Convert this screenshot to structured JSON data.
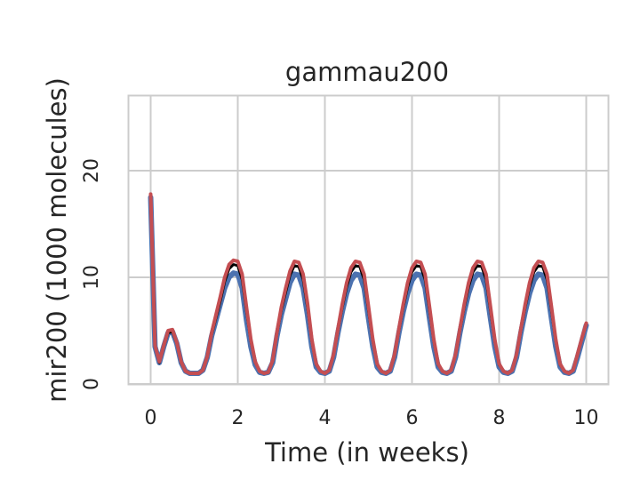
{
  "chart_data": {
    "type": "line",
    "title": "gammau200",
    "xlabel": "Time (in weeks)",
    "ylabel": "mir200 (1000 molecules)",
    "xlim": [
      -0.5,
      10.5
    ],
    "ylim": [
      0,
      27
    ],
    "xticks": [
      0,
      2,
      4,
      6,
      8,
      10
    ],
    "yticks": [
      0,
      10,
      20
    ],
    "grid": true,
    "legend": "none",
    "series": [
      {
        "color": "#4c72b0",
        "x": [
          0,
          0.1,
          0.2,
          0.3,
          0.4,
          0.5,
          0.6,
          0.7,
          0.8,
          0.9,
          1.0,
          1.1,
          1.2,
          1.3,
          1.4,
          1.5,
          1.6,
          1.7,
          1.8,
          1.9,
          2.0,
          2.1,
          2.2,
          2.3,
          2.4,
          2.5,
          2.6,
          2.7,
          2.8,
          2.9,
          3.0,
          3.1,
          3.2,
          3.3,
          3.4,
          3.5,
          3.6,
          3.7,
          3.8,
          3.9,
          4.0,
          4.1,
          4.2,
          4.3,
          4.4,
          4.5,
          4.6,
          4.7,
          4.8,
          4.9,
          5.0,
          5.1,
          5.2,
          5.3,
          5.4,
          5.5,
          5.6,
          5.7,
          5.8,
          5.9,
          6.0,
          6.1,
          6.2,
          6.3,
          6.4,
          6.5,
          6.6,
          6.7,
          6.8,
          6.9,
          7.0,
          7.1,
          7.2,
          7.3,
          7.4,
          7.5,
          7.6,
          7.7,
          7.8,
          7.9,
          8.0,
          8.1,
          8.2,
          8.3,
          8.4,
          8.5,
          8.6,
          8.7,
          8.8,
          8.9,
          9.0,
          9.1,
          9.2,
          9.3,
          9.4,
          9.5,
          9.6,
          9.7,
          9.8,
          9.9,
          10.0
        ],
        "y": [
          17.5,
          3.5,
          2.0,
          3.5,
          4.8,
          4.9,
          3.8,
          2.0,
          1.2,
          1.0,
          1.0,
          1.0,
          1.3,
          2.5,
          4.5,
          6.0,
          7.5,
          9.0,
          10.0,
          10.4,
          10.3,
          9.0,
          6.0,
          3.5,
          1.8,
          1.1,
          1.0,
          1.1,
          2.0,
          4.5,
          6.5,
          8.0,
          9.5,
          10.3,
          10.2,
          9.0,
          6.5,
          3.5,
          1.6,
          1.1,
          1.0,
          1.2,
          2.5,
          4.8,
          6.8,
          8.5,
          9.7,
          10.3,
          10.2,
          9.0,
          6.2,
          3.5,
          1.6,
          1.1,
          1.0,
          1.2,
          2.5,
          4.8,
          6.8,
          8.5,
          9.7,
          10.3,
          10.2,
          9.0,
          6.2,
          3.5,
          1.6,
          1.1,
          1.0,
          1.2,
          2.5,
          4.8,
          6.8,
          8.5,
          9.7,
          10.3,
          10.2,
          9.0,
          6.2,
          3.5,
          1.6,
          1.1,
          1.0,
          1.2,
          2.5,
          4.8,
          6.8,
          8.5,
          9.7,
          10.3,
          10.2,
          9.0,
          6.2,
          3.5,
          1.6,
          1.1,
          1.0,
          1.2,
          2.5,
          4.0,
          5.5
        ]
      },
      {
        "color": "#000000",
        "x": [
          0,
          0.1,
          0.2,
          0.3,
          0.4,
          0.5,
          0.6,
          0.7,
          0.8,
          0.9,
          1.0,
          1.1,
          1.2,
          1.3,
          1.4,
          1.5,
          1.6,
          1.7,
          1.8,
          1.9,
          2.0,
          2.1,
          2.2,
          2.3,
          2.4,
          2.5,
          2.6,
          2.7,
          2.8,
          2.9,
          3.0,
          3.1,
          3.2,
          3.3,
          3.4,
          3.5,
          3.6,
          3.7,
          3.8,
          3.9,
          4.0,
          4.1,
          4.2,
          4.3,
          4.4,
          4.5,
          4.6,
          4.7,
          4.8,
          4.9,
          5.0,
          5.1,
          5.2,
          5.3,
          5.4,
          5.5,
          5.6,
          5.7,
          5.8,
          5.9,
          6.0,
          6.1,
          6.2,
          6.3,
          6.4,
          6.5,
          6.6,
          6.7,
          6.8,
          6.9,
          7.0,
          7.1,
          7.2,
          7.3,
          7.4,
          7.5,
          7.6,
          7.7,
          7.8,
          7.9,
          8.0,
          8.1,
          8.2,
          8.3,
          8.4,
          8.5,
          8.6,
          8.7,
          8.8,
          8.9,
          9.0,
          9.1,
          9.2,
          9.3,
          9.4,
          9.5,
          9.6,
          9.7,
          9.8,
          9.9,
          10.0
        ],
        "y": [
          17.5,
          3.5,
          2.0,
          3.5,
          4.8,
          4.9,
          3.8,
          2.0,
          1.2,
          1.0,
          1.0,
          1.0,
          1.3,
          2.5,
          4.6,
          6.2,
          7.8,
          9.6,
          10.8,
          11.2,
          11.1,
          9.8,
          6.8,
          4.0,
          2.0,
          1.2,
          1.0,
          1.1,
          2.1,
          4.7,
          6.9,
          8.6,
          10.2,
          11.1,
          11.0,
          9.8,
          7.2,
          4.0,
          1.8,
          1.2,
          1.0,
          1.3,
          2.7,
          5.0,
          7.2,
          9.1,
          10.5,
          11.1,
          11.0,
          9.8,
          6.9,
          4.0,
          1.8,
          1.2,
          1.0,
          1.3,
          2.7,
          5.0,
          7.2,
          9.1,
          10.5,
          11.1,
          11.0,
          9.8,
          6.9,
          4.0,
          1.8,
          1.2,
          1.0,
          1.3,
          2.7,
          5.0,
          7.2,
          9.1,
          10.5,
          11.1,
          11.0,
          9.8,
          6.9,
          4.0,
          1.8,
          1.2,
          1.0,
          1.3,
          2.7,
          5.0,
          7.2,
          9.1,
          10.5,
          11.1,
          11.0,
          9.8,
          6.9,
          4.0,
          1.8,
          1.2,
          1.0,
          1.3,
          2.7,
          4.2,
          5.6
        ]
      },
      {
        "color": "#c44e52",
        "x": [
          0,
          0.1,
          0.2,
          0.3,
          0.4,
          0.5,
          0.6,
          0.7,
          0.8,
          0.9,
          1.0,
          1.1,
          1.2,
          1.3,
          1.4,
          1.5,
          1.6,
          1.7,
          1.8,
          1.9,
          2.0,
          2.1,
          2.2,
          2.3,
          2.4,
          2.5,
          2.6,
          2.7,
          2.8,
          2.9,
          3.0,
          3.1,
          3.2,
          3.3,
          3.4,
          3.5,
          3.6,
          3.7,
          3.8,
          3.9,
          4.0,
          4.1,
          4.2,
          4.3,
          4.4,
          4.5,
          4.6,
          4.7,
          4.8,
          4.9,
          5.0,
          5.1,
          5.2,
          5.3,
          5.4,
          5.5,
          5.6,
          5.7,
          5.8,
          5.9,
          6.0,
          6.1,
          6.2,
          6.3,
          6.4,
          6.5,
          6.6,
          6.7,
          6.8,
          6.9,
          7.0,
          7.1,
          7.2,
          7.3,
          7.4,
          7.5,
          7.6,
          7.7,
          7.8,
          7.9,
          8.0,
          8.1,
          8.2,
          8.3,
          8.4,
          8.5,
          8.6,
          8.7,
          8.8,
          8.9,
          9.0,
          9.1,
          9.2,
          9.3,
          9.4,
          9.5,
          9.6,
          9.7,
          9.8,
          9.9,
          10.0
        ],
        "y": [
          17.8,
          3.6,
          2.1,
          3.6,
          5.0,
          5.1,
          3.9,
          2.1,
          1.2,
          1.0,
          1.0,
          1.0,
          1.3,
          2.6,
          4.8,
          6.5,
          8.2,
          10.0,
          11.2,
          11.6,
          11.5,
          10.3,
          7.2,
          4.2,
          2.1,
          1.2,
          1.0,
          1.1,
          2.2,
          4.9,
          7.2,
          9.0,
          10.6,
          11.5,
          11.4,
          10.3,
          7.6,
          4.2,
          1.9,
          1.2,
          1.0,
          1.3,
          2.8,
          5.2,
          7.5,
          9.5,
          10.9,
          11.5,
          11.4,
          10.3,
          7.3,
          4.2,
          1.9,
          1.2,
          1.0,
          1.3,
          2.8,
          5.2,
          7.5,
          9.5,
          10.9,
          11.5,
          11.4,
          10.3,
          7.3,
          4.2,
          1.9,
          1.2,
          1.0,
          1.3,
          2.8,
          5.2,
          7.5,
          9.5,
          10.9,
          11.5,
          11.4,
          10.3,
          7.3,
          4.2,
          1.9,
          1.2,
          1.0,
          1.3,
          2.8,
          5.2,
          7.5,
          9.5,
          10.9,
          11.5,
          11.4,
          10.3,
          7.3,
          4.2,
          1.9,
          1.2,
          1.0,
          1.3,
          2.8,
          4.3,
          5.7
        ]
      }
    ]
  }
}
